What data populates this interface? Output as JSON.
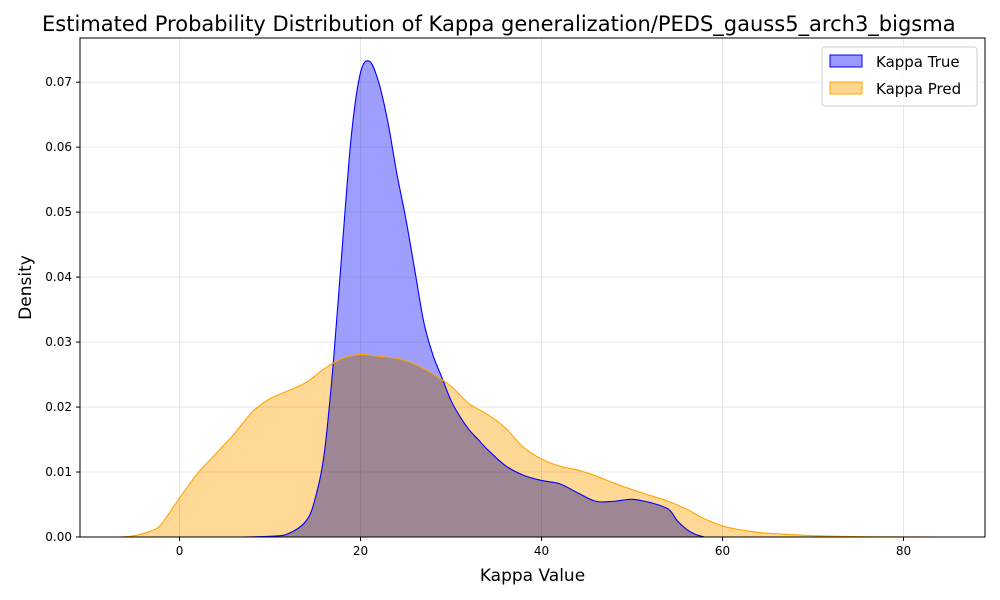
{
  "chart_data": {
    "type": "area",
    "title": "Estimated Probability Distribution of Kappa generalization/PEDS_gauss5_arch3_bigsma",
    "xlabel": "Kappa Value",
    "ylabel": "Density",
    "xlim": [
      -11,
      89
    ],
    "ylim": [
      0,
      0.0768
    ],
    "xticks": [
      0,
      20,
      40,
      60,
      80
    ],
    "yticks": [
      0.0,
      0.01,
      0.02,
      0.03,
      0.04,
      0.05,
      0.06,
      0.07
    ],
    "ytick_labels": [
      "0.00",
      "0.01",
      "0.02",
      "0.03",
      "0.04",
      "0.05",
      "0.06",
      "0.07"
    ],
    "grid": true,
    "legend_position": "top-right",
    "series": [
      {
        "name": "Kappa True",
        "color": "#0000ff",
        "fill": "#9999ff",
        "x": [
          7,
          10,
          12,
          14,
          15,
          16,
          17,
          18,
          19,
          20,
          21,
          22,
          23,
          24,
          25,
          26,
          27,
          28,
          29,
          30,
          31,
          32,
          33,
          34,
          36,
          38,
          40,
          42,
          44,
          46,
          48,
          50,
          52,
          54,
          55,
          56,
          57,
          58
        ],
        "y": [
          0.0,
          0.0001,
          0.0005,
          0.0025,
          0.006,
          0.013,
          0.027,
          0.045,
          0.062,
          0.0715,
          0.0732,
          0.07,
          0.064,
          0.056,
          0.049,
          0.041,
          0.033,
          0.028,
          0.0245,
          0.021,
          0.0185,
          0.0165,
          0.015,
          0.0135,
          0.011,
          0.0095,
          0.0087,
          0.0082,
          0.0068,
          0.0055,
          0.0055,
          0.0058,
          0.0053,
          0.0043,
          0.0025,
          0.0012,
          0.0004,
          0.0
        ]
      },
      {
        "name": "Kappa Pred",
        "color": "#ffa500",
        "fill": "#ffd68f",
        "x": [
          -6.5,
          -5,
          -3,
          -2,
          0,
          2,
          4,
          6,
          8,
          10,
          12,
          14,
          16,
          18,
          20,
          22,
          24,
          26,
          28,
          30,
          32,
          34,
          36,
          38,
          40,
          42,
          44,
          46,
          48,
          50,
          52,
          54,
          56,
          58,
          60,
          62,
          64,
          66,
          70,
          75,
          80,
          84.5
        ],
        "y": [
          0.0,
          0.0002,
          0.001,
          0.002,
          0.006,
          0.0098,
          0.0128,
          0.0158,
          0.0192,
          0.0213,
          0.0225,
          0.0238,
          0.0259,
          0.0275,
          0.0281,
          0.0278,
          0.0275,
          0.0266,
          0.0251,
          0.0232,
          0.0205,
          0.0189,
          0.0168,
          0.0138,
          0.012,
          0.0109,
          0.0103,
          0.0094,
          0.0083,
          0.0073,
          0.0064,
          0.0055,
          0.0043,
          0.0028,
          0.0017,
          0.0011,
          0.0007,
          0.0005,
          0.0002,
          5e-05,
          2e-05,
          0.0
        ]
      }
    ]
  }
}
